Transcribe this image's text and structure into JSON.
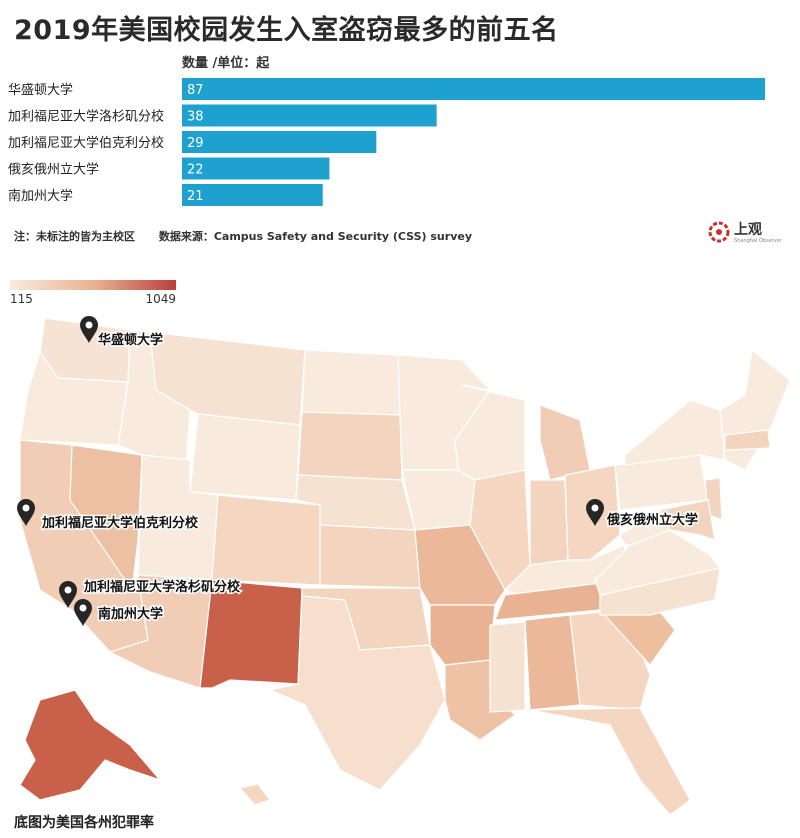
{
  "title": "2019年美国校园发生入室盗窃最多的前五名",
  "chart_data": {
    "type": "bar",
    "orientation": "horizontal",
    "unit_label": "数量 /单位：起",
    "categories": [
      "华盛顿大学",
      "加利福尼亚大学洛杉矶分校",
      "加利福尼亚大学伯克利分校",
      "俄亥俄州立大学",
      "南加州大学"
    ],
    "values": [
      87,
      38,
      29,
      22,
      21
    ],
    "xlim": [
      0,
      87
    ],
    "bar_color": "#1ea1cf"
  },
  "notes": {
    "footnote": "注：未标注的皆为主校区",
    "source": "数据来源：Campus Safety and Security (CSS) survey"
  },
  "logo": {
    "text": "上观",
    "sub": "Shanghai Observer"
  },
  "map": {
    "legend_min": "115",
    "legend_max": "1049",
    "caption": "底图为美国各州犯罪率",
    "pins": [
      {
        "label": "华盛顿大学"
      },
      {
        "label": "加利福尼亚大学伯克利分校"
      },
      {
        "label": "加利福尼亚大学洛杉矶分校"
      },
      {
        "label": "南加州大学"
      },
      {
        "label": "俄亥俄州立大学"
      }
    ],
    "colors": {
      "low": "#f8ebdd",
      "mid": "#e9b393",
      "high": "#c9614a"
    }
  }
}
